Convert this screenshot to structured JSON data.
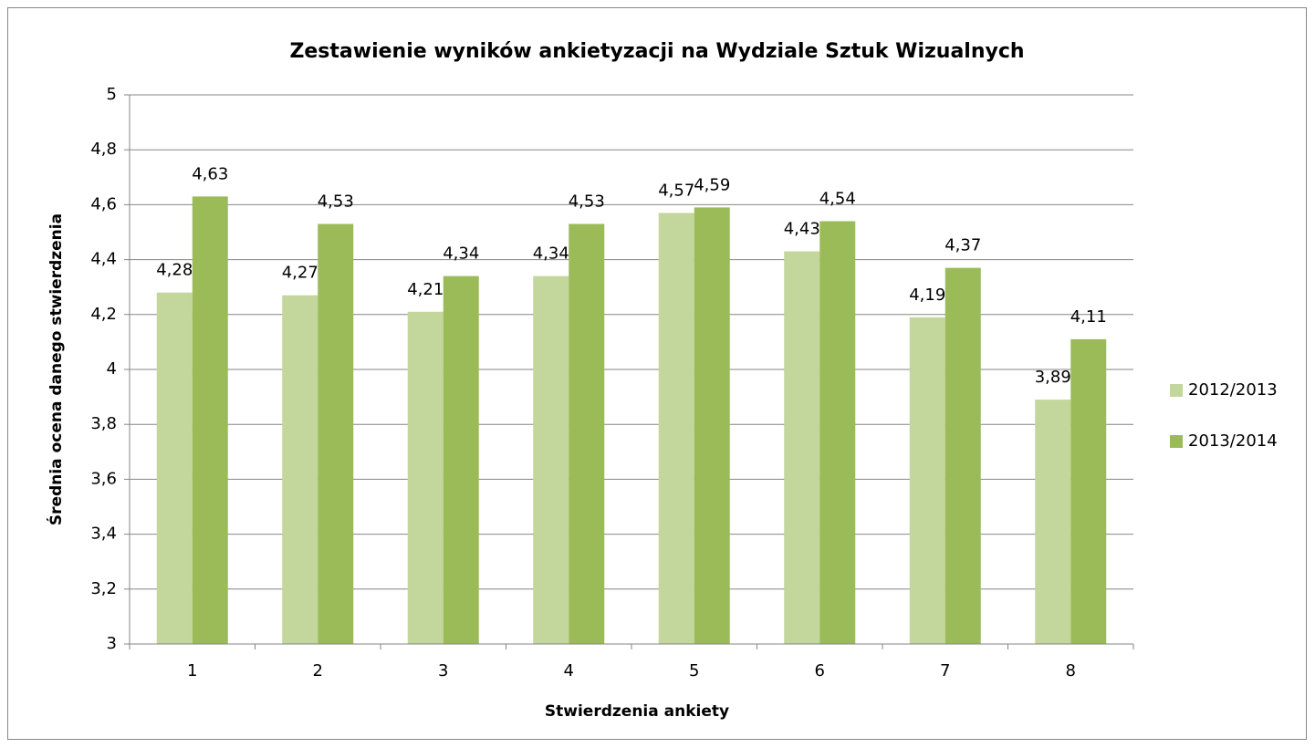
{
  "chart_data": {
    "type": "bar",
    "title": "Zestawienie wyników ankietyzacji na Wydziale Sztuk Wizualnych",
    "x_label": "Stwierdzenia ankiety",
    "y_label": "Średnia ocena danego stwierdzenia",
    "categories": [
      "1",
      "2",
      "3",
      "4",
      "5",
      "6",
      "7",
      "8"
    ],
    "series": [
      {
        "name": "2012/2013",
        "color": "#c3d69b",
        "values": [
          4.28,
          4.27,
          4.21,
          4.34,
          4.57,
          4.43,
          4.19,
          3.89
        ],
        "value_labels": [
          "4,28",
          "4,27",
          "4,21",
          "4,34",
          "4,57",
          "4,43",
          "4,19",
          "3,89"
        ]
      },
      {
        "name": "2013/2014",
        "color": "#9bbb59",
        "values": [
          4.63,
          4.53,
          4.34,
          4.53,
          4.59,
          4.54,
          4.37,
          4.11
        ],
        "value_labels": [
          "4,63",
          "4,53",
          "4,34",
          "4,53",
          "4,59",
          "4,54",
          "4,37",
          "4,11"
        ]
      }
    ],
    "ylim": [
      3,
      5
    ],
    "yticks": [
      3,
      {
        "value": 3.2,
        "label": "3,2"
      },
      {
        "value": 3.4,
        "label": "3,4"
      },
      {
        "value": 3.6,
        "label": "3,6"
      },
      {
        "value": 3.8,
        "label": "3,8"
      },
      4,
      {
        "value": 4.2,
        "label": "4,2"
      },
      {
        "value": 4.4,
        "label": "4,4"
      },
      {
        "value": 4.6,
        "label": "4,6"
      },
      {
        "value": 4.8,
        "label": "4,8"
      },
      5
    ],
    "grid": true,
    "legend": "right"
  }
}
